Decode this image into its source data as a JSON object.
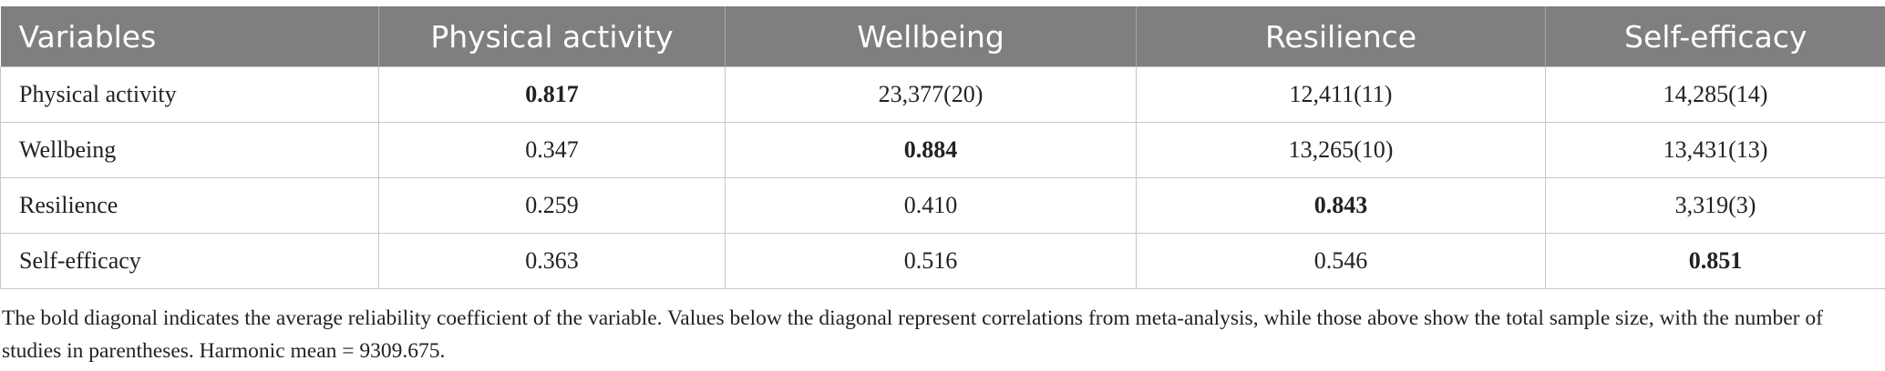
{
  "table": {
    "header": [
      "Variables",
      "Physical activity",
      "Wellbeing",
      "Resilience",
      "Self-efficacy"
    ],
    "rows": [
      [
        "Physical activity",
        "0.817",
        "23,377(20)",
        "12,411(11)",
        "14,285(14)"
      ],
      [
        "Wellbeing",
        "0.347",
        "0.884",
        "13,265(10)",
        "13,431(13)"
      ],
      [
        "Resilience",
        "0.259",
        "0.410",
        "0.843",
        "3,319(3)"
      ],
      [
        "Self-efficacy",
        "0.363",
        "0.516",
        "0.546",
        "0.851"
      ]
    ]
  },
  "footnote": "The bold diagonal indicates the average reliability coefficient of the variable. Values below the diagonal represent correlations from meta-analysis, while those above show the total sample size, with the number of studies in parentheses. Harmonic mean = 9309.675."
}
